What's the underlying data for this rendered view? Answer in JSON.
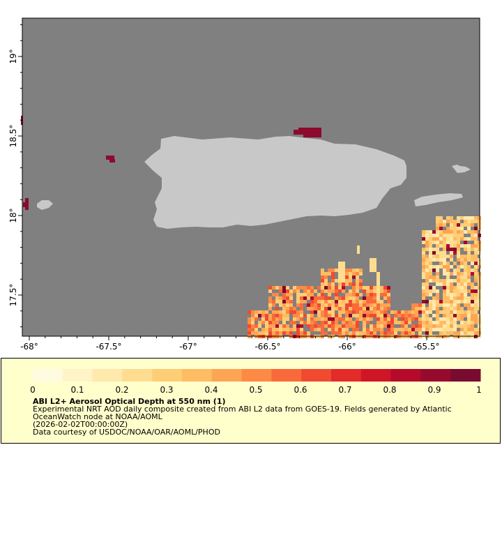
{
  "map": {
    "longitude_ticks": [
      "-68°",
      "-67.5°",
      "-67°",
      "-66.5°",
      "-66°",
      "-65.5°"
    ],
    "latitude_ticks": [
      "19°",
      "18.5°",
      "18°",
      "17.5°"
    ],
    "colors": {
      "ocean": "#808080",
      "land": "#c8c8c8",
      "high_aod": "#8b0a2e"
    }
  },
  "legend": {
    "tick_labels": [
      "0",
      "0.1",
      "0.2",
      "0.3",
      "0.4",
      "0.5",
      "0.6",
      "0.7",
      "0.8",
      "0.9",
      "1"
    ],
    "title": "ABI L2+ Aerosol Optical Depth at 550 nm (1)",
    "description_line1": "Experimental NRT AOD daily composite created from ABI L2 data from GOES-19. Fields generated by Atlantic",
    "description_line2": "OceanWatch node at NOAA/AOML",
    "date": "(2026-02-02T00:00:00Z)",
    "credit": "Data courtesy of USDOC/NOAA/OAR/AOML/PHOD",
    "colors": [
      "#fffbe0",
      "#fff3c8",
      "#ffe9ac",
      "#fedd90",
      "#fece76",
      "#febc63",
      "#fda553",
      "#fc8a45",
      "#f96a3a",
      "#f04a31",
      "#e32b2a",
      "#cf1528",
      "#b50a2b",
      "#960a2e",
      "#7a0b30"
    ]
  }
}
